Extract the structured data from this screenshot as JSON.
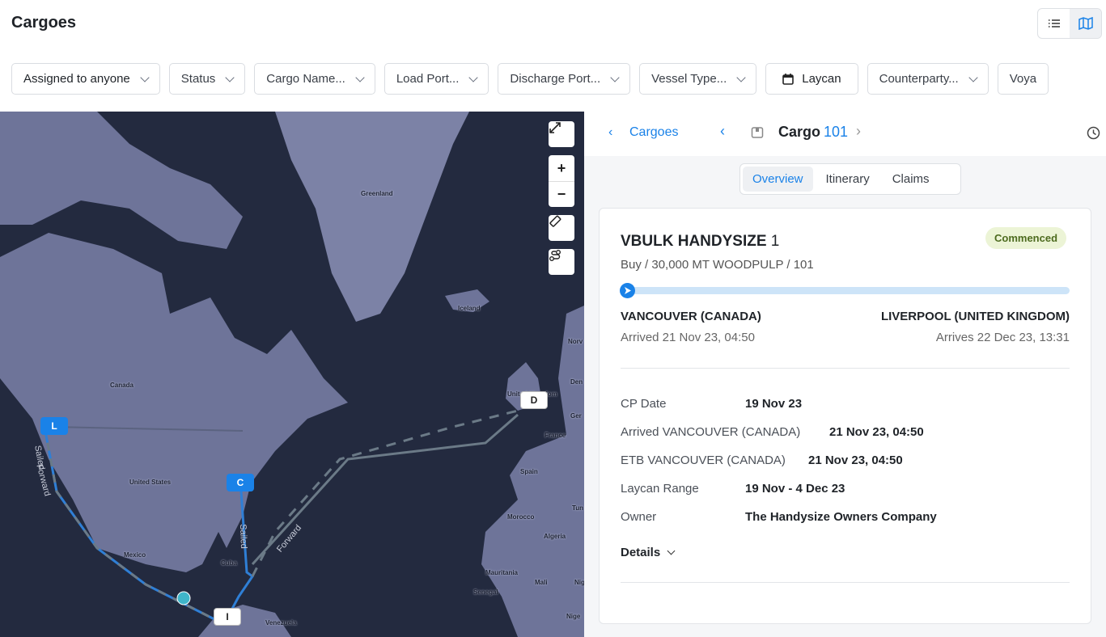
{
  "header": {
    "title": "Cargoes",
    "view_list_icon": "list-icon",
    "view_map_icon": "map-icon",
    "active_view": "map"
  },
  "filters": [
    {
      "label": "Assigned to anyone"
    },
    {
      "label": "Status"
    },
    {
      "label": "Cargo Name..."
    },
    {
      "label": "Load Port..."
    },
    {
      "label": "Discharge Port..."
    },
    {
      "label": "Vessel Type..."
    },
    {
      "label": "Laycan",
      "icon": "calendar-icon"
    },
    {
      "label": "Counterparty..."
    },
    {
      "label": "Voya"
    }
  ],
  "map": {
    "labels": {
      "greenland": "Greenland",
      "iceland": "Iceland",
      "canada": "Canada",
      "us": "United States",
      "mexico": "Mexico",
      "cuba": "Cuba",
      "venezuela": "Venezuela",
      "uk": "United Kingdom",
      "norway": "Norv",
      "denmark": "Den",
      "germany": "Ger",
      "france": "France",
      "spain": "Spain",
      "tunisia": "Tun",
      "morocco": "Morocco",
      "algeria": "Algeria",
      "mauritania": "Mauritania",
      "mali": "Mali",
      "niger": "Nig",
      "senegal": "Senegal",
      "nigeria": "Nige"
    },
    "route_labels": {
      "sailed1": "Sailed",
      "forward1": "Forward",
      "sailed2": "Sailed",
      "forward2": "Forward"
    },
    "pins": {
      "L": "L",
      "C": "C",
      "I": "I",
      "D": "D"
    },
    "controls": [
      "fullscreen-icon",
      "zoom-in-icon",
      "zoom-out-icon",
      "ruler-icon",
      "route-icon"
    ],
    "colors": {
      "water": "#232a3f",
      "land": "#6e7499",
      "route_sailed": "#2f7fd6",
      "route_forward": "#6b7a87"
    }
  },
  "panel": {
    "back_label": "Cargoes",
    "title_prefix": "Cargo",
    "title_number": "101",
    "tabs": [
      "Overview",
      "Itinerary",
      "Claims"
    ],
    "active_tab": "Overview",
    "card": {
      "vessel": "VBULK HANDYSIZE",
      "vessel_num": "1",
      "status": "Commenced",
      "subtitle": "Buy / 30,000 MT WOODPULP / 101",
      "progress": 0.0,
      "from_port": "VANCOUVER (CANADA)",
      "from_time": "Arrived 21 Nov 23, 04:50",
      "to_port": "LIVERPOOL (UNITED KINGDOM)",
      "to_time": "Arrives 22 Dec 23, 13:31",
      "fields": [
        {
          "k": "CP Date",
          "v": "19 Nov 23"
        },
        {
          "k": "Arrived VANCOUVER (CANADA)",
          "v": "21 Nov 23, 04:50"
        },
        {
          "k": "ETB VANCOUVER (CANADA)",
          "v": "21 Nov 23, 04:50"
        },
        {
          "k": "Laycan Range",
          "v": "19 Nov - 4 Dec 23"
        },
        {
          "k": "Owner",
          "v": "The Handysize Owners Company"
        }
      ],
      "details_label": "Details"
    }
  }
}
